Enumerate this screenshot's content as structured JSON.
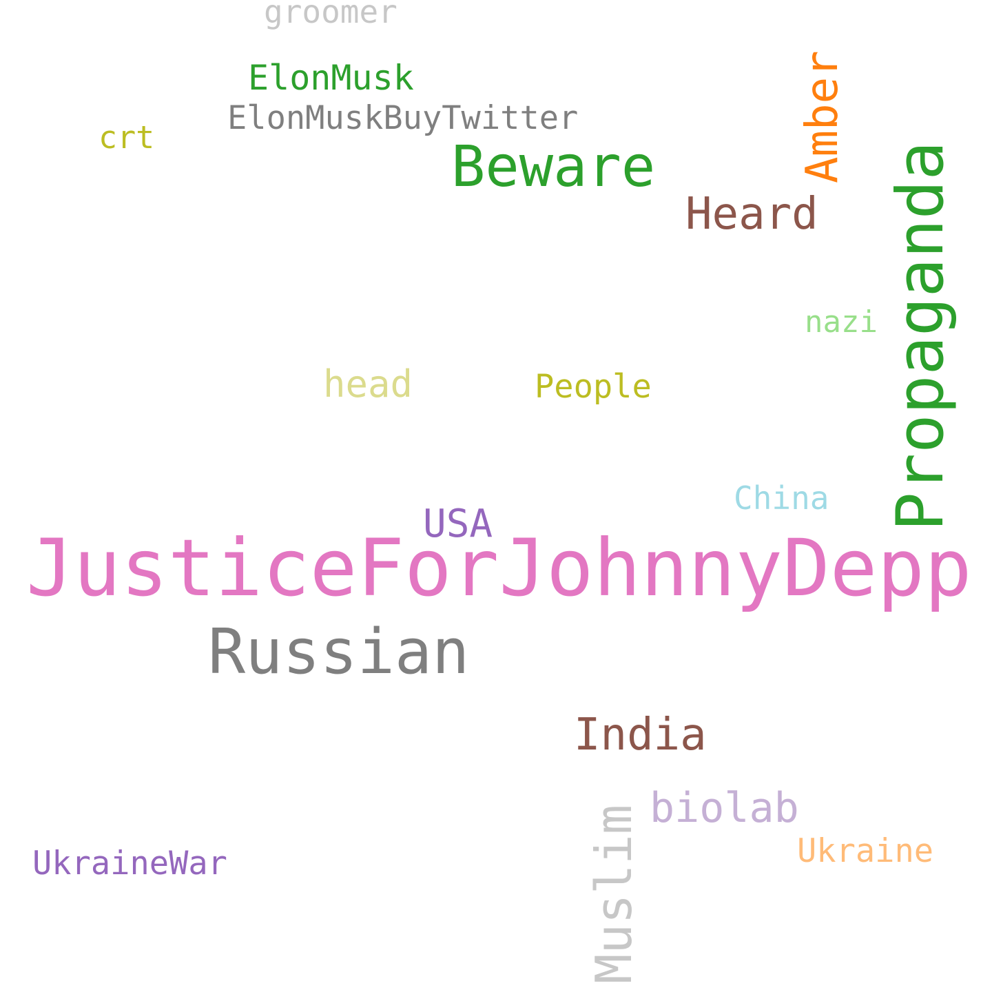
{
  "words": {
    "groomer": {
      "text": "groomer",
      "color": "#c7c7c7"
    },
    "elonmusk": {
      "text": "ElonMusk",
      "color": "#2ca02c"
    },
    "elonmuskbuytwitter": {
      "text": "ElonMuskBuyTwitter",
      "color": "#7f7f7f"
    },
    "crt": {
      "text": "crt",
      "color": "#bcbd22"
    },
    "beware": {
      "text": "Beware",
      "color": "#2ca02c"
    },
    "amber": {
      "text": "Amber",
      "color": "#ff7f0e"
    },
    "heard": {
      "text": "Heard",
      "color": "#8c564b"
    },
    "propaganda": {
      "text": "Propaganda",
      "color": "#2ca02c"
    },
    "nazi": {
      "text": "nazi",
      "color": "#98df8a"
    },
    "head": {
      "text": "head",
      "color": "#dbdb8d"
    },
    "people": {
      "text": "People",
      "color": "#bcbd22"
    },
    "china": {
      "text": "China",
      "color": "#9edae5"
    },
    "usa": {
      "text": "USA",
      "color": "#9467bd"
    },
    "justice": {
      "text": "JusticeForJohnnyDepp",
      "color": "#e377c2"
    },
    "russian": {
      "text": "Russian",
      "color": "#7f7f7f"
    },
    "india": {
      "text": "India",
      "color": "#8c564b"
    },
    "muslim": {
      "text": "Muslim",
      "color": "#c7c7c7"
    },
    "biolab": {
      "text": "biolab",
      "color": "#c5b0d5"
    },
    "ukraine": {
      "text": "Ukraine",
      "color": "#ffbb78"
    },
    "ukrainewar": {
      "text": "UkraineWar",
      "color": "#9467bd"
    }
  }
}
